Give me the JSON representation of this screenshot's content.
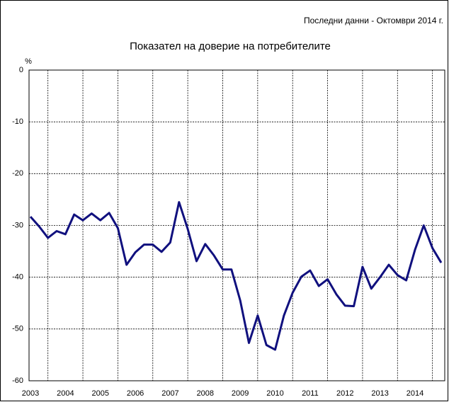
{
  "chart_data": {
    "type": "line",
    "note": "Последни данни - Октомври 2014 г.",
    "title": "Показател на доверие на потребителите",
    "y_label": "%",
    "categories": [
      "2003",
      null,
      null,
      null,
      "2004",
      null,
      null,
      null,
      "2005",
      null,
      null,
      null,
      "2006",
      null,
      null,
      null,
      "2007",
      null,
      null,
      null,
      "2008",
      null,
      null,
      null,
      "2009",
      null,
      null,
      null,
      "2010",
      null,
      null,
      null,
      "2011",
      null,
      null,
      null,
      "2012",
      null,
      null,
      null,
      "2013",
      null,
      null,
      null,
      "2014",
      null,
      null,
      null
    ],
    "series": [
      {
        "name": "Показател на доверие на потребителите",
        "color": "#10107e",
        "values": [
          -28.3,
          -30.2,
          -32.4,
          -31.1,
          -31.7,
          -27.9,
          -29.0,
          -27.7,
          -29.0,
          -27.6,
          -30.5,
          -37.6,
          -35.2,
          -33.7,
          -33.7,
          -35.1,
          -33.3,
          -25.5,
          -30.7,
          -36.9,
          -33.6,
          -35.8,
          -38.5,
          -38.5,
          -44.5,
          -52.7,
          -47.4,
          -53.1,
          -54.0,
          -47.4,
          -43.0,
          -39.9,
          -38.7,
          -41.7,
          -40.4,
          -43.3,
          -45.5,
          -45.6,
          -38.0,
          -42.2,
          -40.0,
          -37.6,
          -39.6,
          -40.6,
          -34.7,
          -30.0,
          -34.4,
          -37.2
        ]
      }
    ],
    "ylim": [
      -60,
      0
    ],
    "yticks": [
      0,
      -10,
      -20,
      -30,
      -40,
      -50,
      -60
    ],
    "grid": true
  }
}
